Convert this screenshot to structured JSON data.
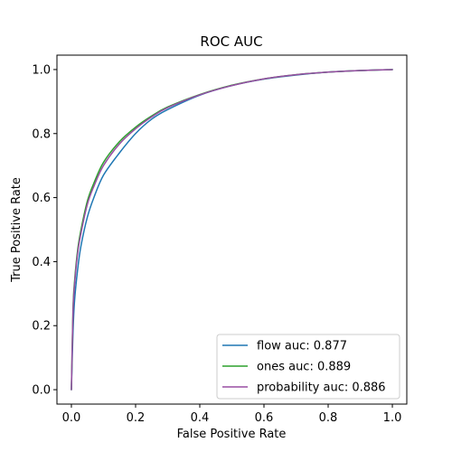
{
  "chart_data": {
    "type": "line",
    "title": "ROC AUC",
    "xlabel": "False Positive Rate",
    "ylabel": "True Positive Rate",
    "xlim": [
      -0.045,
      1.045
    ],
    "ylim": [
      -0.045,
      1.045
    ],
    "xticks": [
      "0.0",
      "0.2",
      "0.4",
      "0.6",
      "0.8",
      "1.0"
    ],
    "yticks": [
      "0.0",
      "0.2",
      "0.4",
      "0.6",
      "0.8",
      "1.0"
    ],
    "grid": false,
    "legend_position": "bottom-right",
    "series": [
      {
        "name": "flow auc: 0.877",
        "color": "#1f77b4",
        "x": [
          0.0,
          0.005,
          0.01,
          0.02,
          0.03,
          0.05,
          0.07,
          0.1,
          0.15,
          0.2,
          0.25,
          0.3,
          0.4,
          0.5,
          0.6,
          0.7,
          0.8,
          0.9,
          1.0
        ],
        "y": [
          0.0,
          0.18,
          0.28,
          0.38,
          0.45,
          0.54,
          0.6,
          0.67,
          0.74,
          0.8,
          0.845,
          0.875,
          0.92,
          0.95,
          0.97,
          0.983,
          0.992,
          0.997,
          1.0
        ]
      },
      {
        "name": "ones auc: 0.889",
        "color": "#2ca02c",
        "x": [
          0.0,
          0.005,
          0.01,
          0.02,
          0.03,
          0.05,
          0.07,
          0.1,
          0.15,
          0.2,
          0.25,
          0.3,
          0.4,
          0.5,
          0.6,
          0.7,
          0.8,
          0.9,
          1.0
        ],
        "y": [
          0.0,
          0.25,
          0.34,
          0.44,
          0.5,
          0.59,
          0.645,
          0.71,
          0.775,
          0.82,
          0.855,
          0.883,
          0.922,
          0.951,
          0.971,
          0.984,
          0.992,
          0.997,
          1.0
        ]
      },
      {
        "name": "probability auc: 0.886",
        "color": "#984ea3",
        "x": [
          0.0,
          0.005,
          0.01,
          0.02,
          0.03,
          0.05,
          0.07,
          0.1,
          0.15,
          0.2,
          0.25,
          0.3,
          0.4,
          0.5,
          0.6,
          0.7,
          0.8,
          0.9,
          1.0
        ],
        "y": [
          0.0,
          0.24,
          0.33,
          0.43,
          0.49,
          0.58,
          0.635,
          0.7,
          0.768,
          0.815,
          0.852,
          0.881,
          0.921,
          0.95,
          0.971,
          0.984,
          0.992,
          0.997,
          1.0
        ]
      }
    ]
  }
}
